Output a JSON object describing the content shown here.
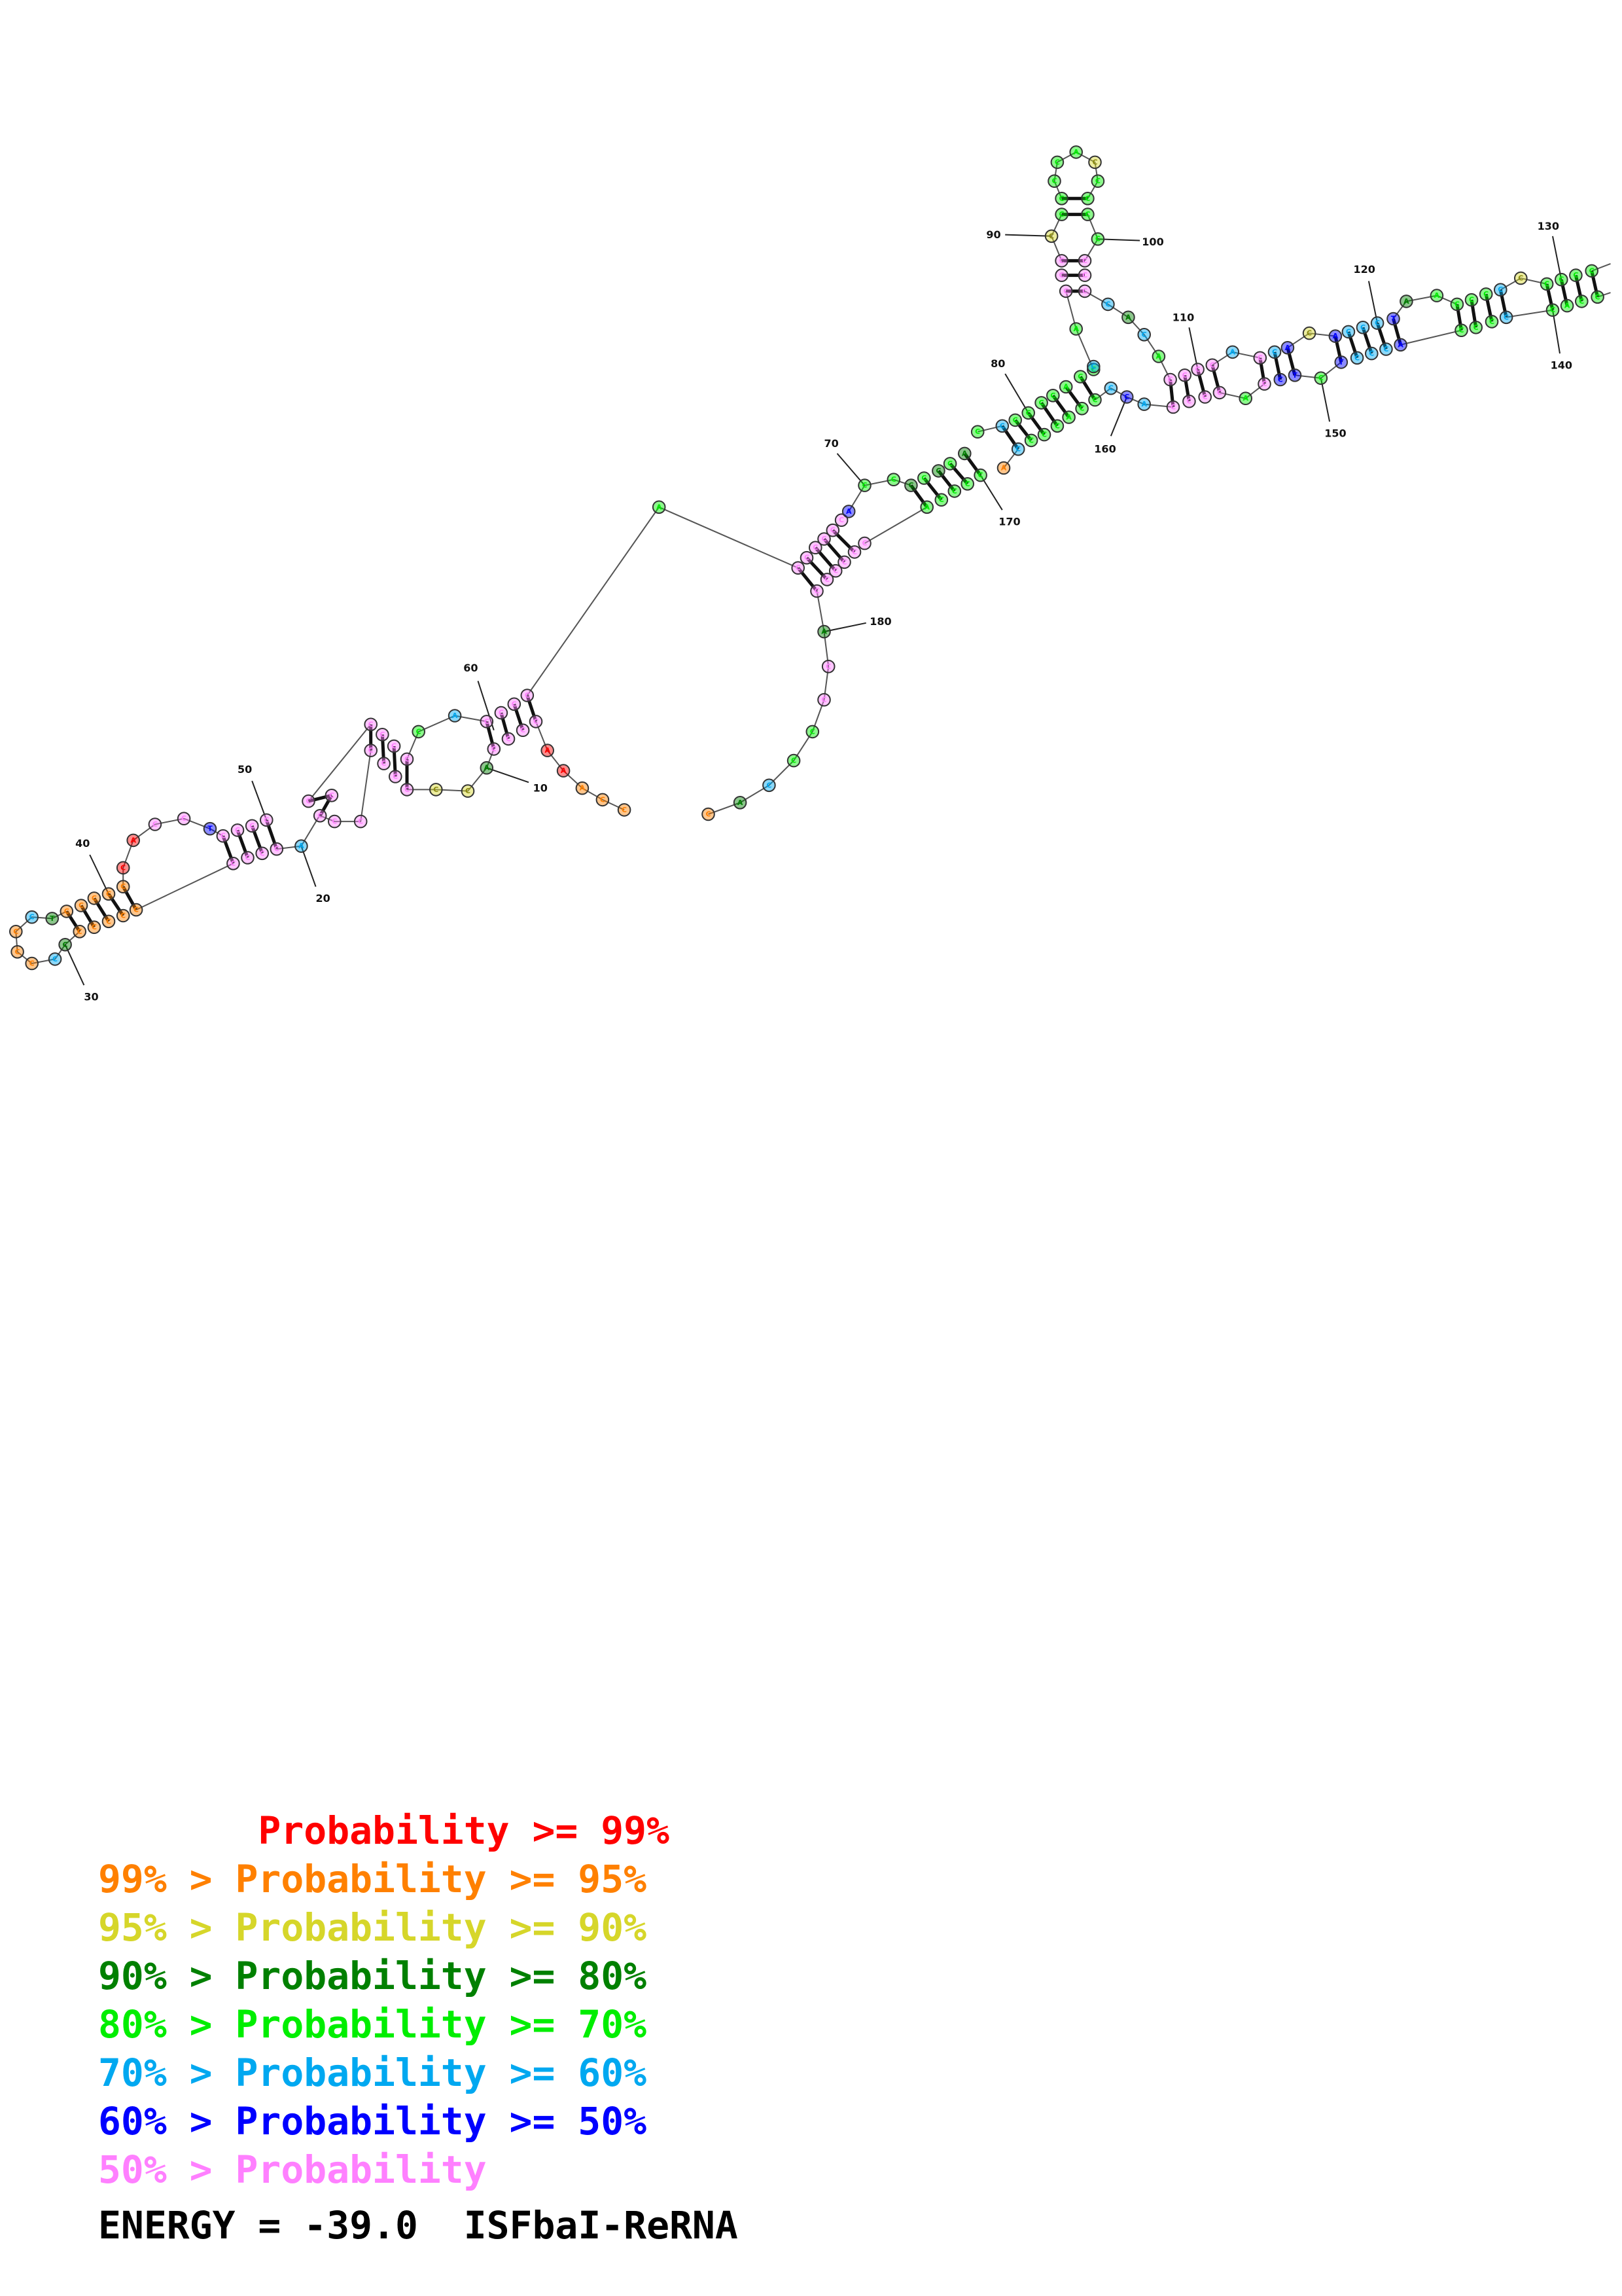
{
  "diagram": {
    "energy_label": "ENERGY = -39.0",
    "name_label": "ISFbaI-ReRNA",
    "position_labels": [
      "10",
      "20",
      "30",
      "40",
      "50",
      "60",
      "70",
      "80",
      "90",
      "100",
      "110",
      "120",
      "130",
      "140",
      "150",
      "160",
      "170",
      "180"
    ],
    "legend": [
      {
        "text": "       Probability >= 99%",
        "color": "#ff0000"
      },
      {
        "text": "99% > Probability >= 95%",
        "color": "#ff8000"
      },
      {
        "text": "95% > Probability >= 90%",
        "color": "#d6d62a"
      },
      {
        "text": "90% > Probability >= 80%",
        "color": "#008000"
      },
      {
        "text": "80% > Probability >= 70%",
        "color": "#00ee00"
      },
      {
        "text": "70% > Probability >= 60%",
        "color": "#00a8f0"
      },
      {
        "text": "60% > Probability >= 50%",
        "color": "#0000ff"
      },
      {
        "text": "50% > Probability",
        "color": "#ff80ff"
      }
    ],
    "colors": {
      "red": "#ff0000",
      "orange": "#ff8000",
      "yellow": "#d6d62a",
      "darkgreen": "#008000",
      "green": "#00ee00",
      "cyan": "#00a8f0",
      "blue": "#0000ff",
      "pink": "#ff80ff"
    }
  }
}
